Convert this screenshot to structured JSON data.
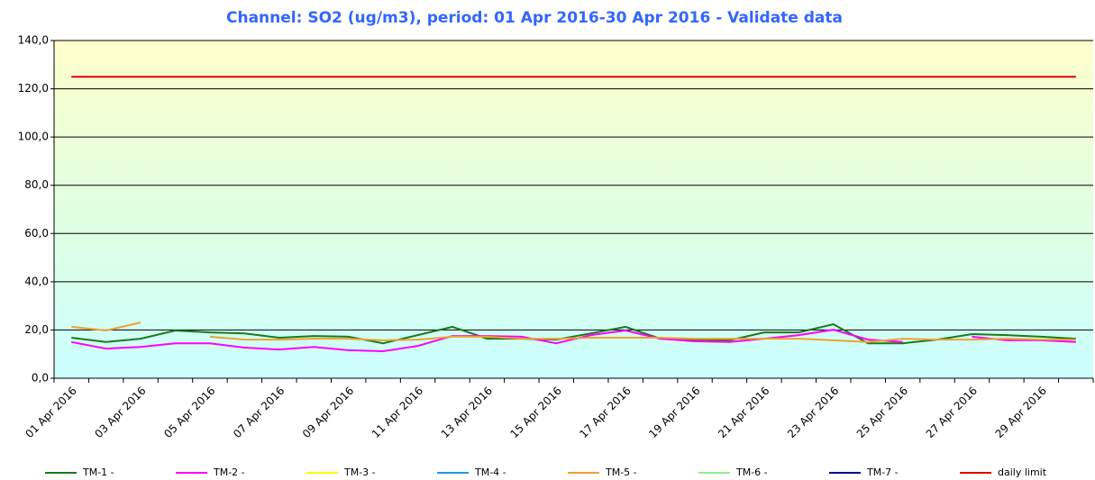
{
  "chart_data": {
    "type": "line",
    "title": "Channel: SO2 (ug/m3), period: 01 Apr 2016-30 Apr 2016 - Validate data",
    "categories": [
      "01 Apr 2016",
      null,
      "03 Apr 2016",
      null,
      "05 Apr 2016",
      null,
      "07 Apr 2016",
      null,
      "09 Apr 2016",
      null,
      "11 Apr 2016",
      null,
      "13 Apr 2016",
      null,
      "15 Apr 2016",
      null,
      "17 Apr 2016",
      null,
      "19 Apr 2016",
      null,
      "21 Apr 2016",
      null,
      "23 Apr 2016",
      null,
      "25 Apr 2016",
      null,
      "27 Apr 2016",
      null,
      "29 Apr 2016",
      null
    ],
    "series": [
      {
        "name": "TM-1 -",
        "color": "#1a7a1a",
        "values": [
          16.8,
          15,
          16.4,
          19.8,
          19,
          18.6,
          16.8,
          17.5,
          17.2,
          14.5,
          17.9,
          21.3,
          16.4,
          16.4,
          16,
          18.6,
          21.3,
          16.4,
          16,
          15.7,
          19,
          19,
          22.4,
          14.5,
          14.5,
          16,
          18.3,
          17.9,
          17.2,
          16.4
        ]
      },
      {
        "name": "TM-2 -",
        "color": "#ff00ff",
        "values": [
          15,
          12.3,
          13,
          14.5,
          14.5,
          12.7,
          11.9,
          13,
          11.6,
          11.2,
          13.4,
          17.5,
          17.5,
          17.2,
          14.5,
          17.9,
          19.8,
          16.4,
          15.3,
          15,
          16.4,
          17.9,
          20.1,
          16,
          15,
          null,
          17.2,
          15.7,
          15.7,
          15
        ]
      },
      {
        "name": "TM-3 -",
        "color": "#ffff00",
        "values": [
          null,
          null,
          null,
          null,
          null,
          null,
          null,
          null,
          null,
          null,
          null,
          null,
          null,
          null,
          null,
          null,
          null,
          null,
          null,
          null,
          null,
          null,
          null,
          null,
          null,
          null,
          null,
          null,
          null,
          null
        ]
      },
      {
        "name": "TM-4 -",
        "color": "#1e9bd7",
        "values": [
          null,
          null,
          null,
          null,
          null,
          null,
          null,
          null,
          null,
          null,
          null,
          null,
          null,
          null,
          null,
          null,
          null,
          null,
          null,
          null,
          null,
          null,
          null,
          null,
          null,
          null,
          null,
          null,
          null,
          null
        ]
      },
      {
        "name": "TM-5 -",
        "color": "#f0a030",
        "values": [
          21.3,
          19.8,
          23.1,
          null,
          17.2,
          16,
          16,
          16.4,
          16.4,
          15.7,
          16,
          17.2,
          17.2,
          16.4,
          16.4,
          16.8,
          16.8,
          16.8,
          16.4,
          16.4,
          16.4,
          16.4,
          15.7,
          15,
          16.4,
          16,
          16,
          16.4,
          16,
          16
        ]
      },
      {
        "name": "TM-6 -",
        "color": "#90ee90",
        "values": [
          null,
          null,
          null,
          null,
          null,
          null,
          null,
          null,
          null,
          null,
          null,
          null,
          null,
          null,
          null,
          null,
          null,
          null,
          null,
          null,
          null,
          null,
          null,
          null,
          null,
          null,
          null,
          null,
          null,
          null
        ]
      },
      {
        "name": "TM-7 -",
        "color": "#000090",
        "values": [
          null,
          null,
          null,
          null,
          null,
          null,
          null,
          null,
          null,
          null,
          null,
          null,
          null,
          null,
          null,
          null,
          null,
          null,
          null,
          null,
          null,
          null,
          null,
          null,
          null,
          null,
          null,
          null,
          null,
          null
        ]
      },
      {
        "name": "daily limit",
        "color": "#e00000",
        "values": [
          125,
          125,
          125,
          125,
          125,
          125,
          125,
          125,
          125,
          125,
          125,
          125,
          125,
          125,
          125,
          125,
          125,
          125,
          125,
          125,
          125,
          125,
          125,
          125,
          125,
          125,
          125,
          125,
          125,
          125
        ]
      }
    ],
    "ylim": [
      0,
      140
    ],
    "yticks": [
      {
        "value": 0,
        "label": "0,0"
      },
      {
        "value": 20,
        "label": "20,0"
      },
      {
        "value": 40,
        "label": "40,0"
      },
      {
        "value": 60,
        "label": "60,0"
      },
      {
        "value": 80,
        "label": "80,0"
      },
      {
        "value": 100,
        "label": "100,0"
      },
      {
        "value": 120,
        "label": "120,0"
      },
      {
        "value": 140,
        "label": "140,0"
      }
    ],
    "grid": true
  }
}
